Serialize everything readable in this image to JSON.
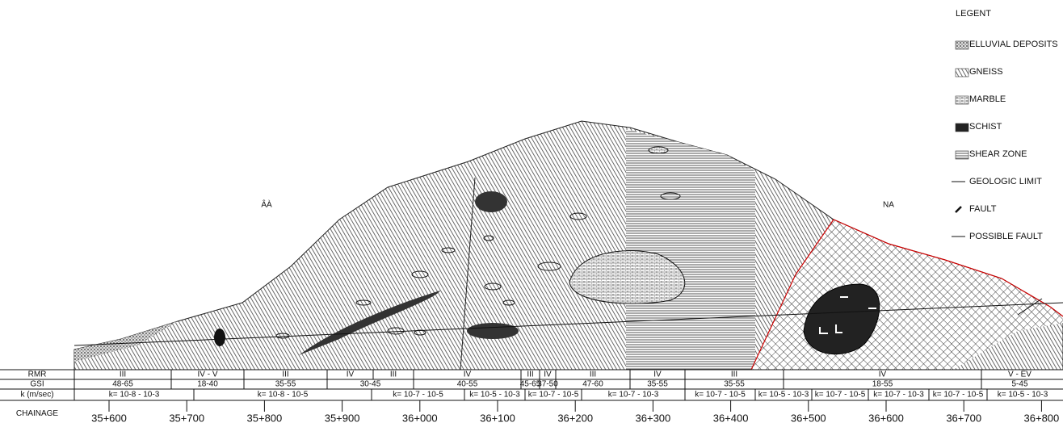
{
  "legend": {
    "title": "LEGENT",
    "items": [
      "ELLUVIAL DEPOSITS",
      "GNEISS",
      "MARBLE",
      "SCHIST",
      "SHEAR ZONE",
      "GEOLOGIC LIMIT",
      "FAULT",
      "POSSIBLE FAULT"
    ]
  },
  "labels": [
    "ÂÀ",
    "NA"
  ],
  "table": {
    "headers": [
      "RMR",
      "GSI",
      "k (m/sec)",
      "CHAINAGE"
    ],
    "rmr": [
      "III",
      "IV - V",
      "III",
      "IV",
      "III",
      "IV",
      "III",
      "IV",
      "III",
      "IV",
      "III",
      "IV",
      "V - EV"
    ],
    "gsi": [
      "48-65",
      "18-40",
      "35-55",
      "30-45",
      "40-55",
      "45-65",
      "37-50",
      "47-60",
      "35-55",
      "35-55",
      "18-55",
      "5-45"
    ],
    "k": [
      "k= 10-8 - 10-3",
      "k= 10-8 - 10-5",
      "k= 10-7 - 10-5",
      "k= 10-5 - 10-3",
      "k= 10-7 - 10-5",
      "k= 10-7 - 10-3",
      "k= 10-7 - 10-5",
      "k= 10-5 - 10-3",
      "k= 10-7 - 10-5",
      "k= 10-7 - 10-3",
      "k= 10-7 - 10-5",
      "k= 10-5 - 10-3"
    ],
    "chainage": [
      "35+600",
      "35+700",
      "35+800",
      "35+900",
      "36+000",
      "36+100",
      "36+200",
      "36+300",
      "36+400",
      "36+500",
      "36+600",
      "36+700",
      "36+800"
    ]
  }
}
